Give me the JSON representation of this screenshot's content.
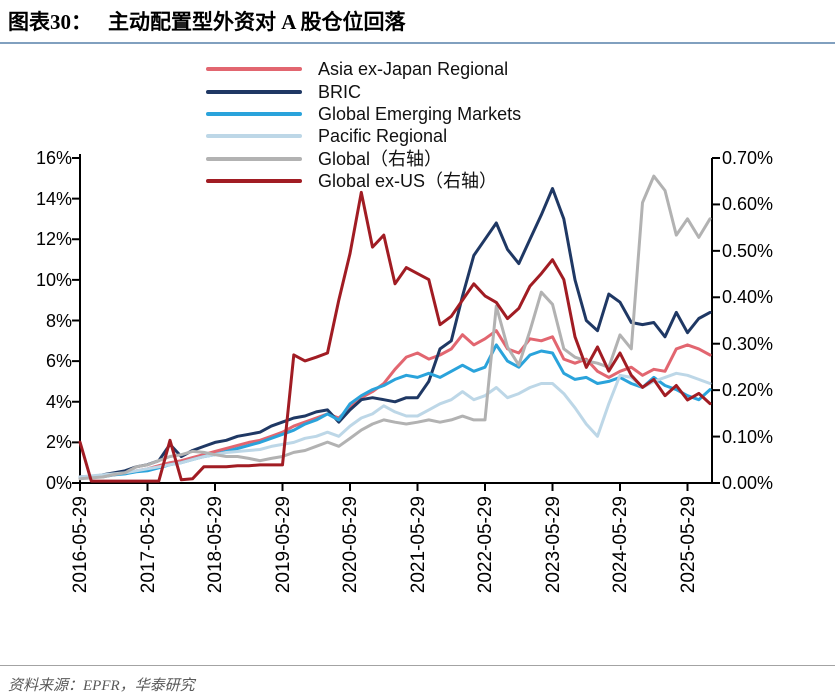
{
  "figure": {
    "label": "图表30：",
    "title": "主动配置型外资对 A 股仓位回落",
    "source": "资料来源：EPFR，华泰研究",
    "accent_rule_color": "#81a0bf",
    "axis_color": "#000000"
  },
  "chart_data": {
    "type": "line",
    "grid": false,
    "legend_position": "top-center",
    "x_tick_labels": [
      "2016-05-29",
      "2017-05-29",
      "2018-05-29",
      "2019-05-29",
      "2020-05-29",
      "2021-05-29",
      "2022-05-29",
      "2023-05-29",
      "2024-05-29",
      "2025-05-29"
    ],
    "left_axis": {
      "min": 0,
      "max": 16,
      "step": 2,
      "ticks": [
        "0%",
        "2%",
        "4%",
        "6%",
        "8%",
        "10%",
        "12%",
        "14%",
        "16%"
      ]
    },
    "right_axis": {
      "min": 0,
      "max": 0.7,
      "step": 0.1,
      "ticks": [
        "0.00%",
        "0.10%",
        "0.20%",
        "0.30%",
        "0.40%",
        "0.50%",
        "0.60%",
        "0.70%"
      ]
    },
    "x": [
      "2016-05",
      "2016-07",
      "2016-09",
      "2016-11",
      "2017-01",
      "2017-03",
      "2017-05",
      "2017-07",
      "2017-09",
      "2017-11",
      "2018-01",
      "2018-03",
      "2018-05",
      "2018-07",
      "2018-09",
      "2018-11",
      "2019-01",
      "2019-03",
      "2019-05",
      "2019-07",
      "2019-09",
      "2019-11",
      "2020-01",
      "2020-03",
      "2020-05",
      "2020-07",
      "2020-09",
      "2020-11",
      "2021-01",
      "2021-03",
      "2021-05",
      "2021-07",
      "2021-09",
      "2021-11",
      "2022-01",
      "2022-03",
      "2022-05",
      "2022-07",
      "2022-09",
      "2022-11",
      "2023-01",
      "2023-03",
      "2023-05",
      "2023-07",
      "2023-09",
      "2023-11",
      "2024-01",
      "2024-03",
      "2024-05",
      "2024-07",
      "2024-09",
      "2024-11",
      "2025-01",
      "2025-03",
      "2025-05",
      "2025-07",
      "2025-09"
    ],
    "series": [
      {
        "id": "asia-ex-japan",
        "name": "Asia ex-Japan Regional",
        "color": "#e26670",
        "axis": "left",
        "values": [
          0.3,
          0.3,
          0.35,
          0.4,
          0.5,
          0.6,
          0.7,
          0.85,
          1.0,
          1.1,
          1.25,
          1.4,
          1.55,
          1.7,
          1.85,
          2.0,
          2.1,
          2.3,
          2.5,
          2.8,
          3.0,
          3.2,
          3.4,
          3.2,
          3.7,
          4.2,
          4.5,
          4.9,
          5.6,
          6.2,
          6.4,
          6.1,
          6.3,
          6.6,
          7.3,
          6.8,
          7.1,
          7.5,
          6.6,
          6.4,
          7.1,
          7.0,
          7.2,
          6.1,
          5.9,
          6.1,
          5.5,
          5.2,
          5.5,
          5.7,
          5.3,
          5.6,
          5.5,
          6.6,
          6.8,
          6.6,
          6.3
        ]
      },
      {
        "id": "bric",
        "name": "BRIC",
        "color": "#1f3864",
        "axis": "left",
        "values": [
          0.3,
          0.3,
          0.4,
          0.5,
          0.6,
          0.8,
          0.9,
          1.1,
          1.9,
          1.3,
          1.6,
          1.8,
          2.0,
          2.1,
          2.3,
          2.4,
          2.5,
          2.8,
          3.0,
          3.2,
          3.3,
          3.5,
          3.6,
          3.0,
          3.6,
          4.1,
          4.2,
          4.1,
          4.0,
          4.2,
          4.2,
          5.0,
          6.6,
          7.0,
          9.2,
          11.2,
          12.0,
          12.8,
          11.5,
          10.8,
          12.0,
          13.2,
          14.5,
          13.0,
          10.0,
          8.0,
          7.5,
          9.3,
          8.9,
          7.9,
          7.8,
          7.9,
          7.2,
          8.4,
          7.4,
          8.1,
          8.4
        ]
      },
      {
        "id": "gem",
        "name": "Global Emerging Markets",
        "color": "#2aa3db",
        "axis": "left",
        "values": [
          0.25,
          0.3,
          0.3,
          0.4,
          0.45,
          0.55,
          0.6,
          0.75,
          0.9,
          1.0,
          1.15,
          1.3,
          1.4,
          1.55,
          1.7,
          1.85,
          2.0,
          2.2,
          2.4,
          2.6,
          2.9,
          3.1,
          3.4,
          3.1,
          3.9,
          4.3,
          4.6,
          4.8,
          5.1,
          5.3,
          5.2,
          5.4,
          5.2,
          5.5,
          5.8,
          5.5,
          5.7,
          6.8,
          6.0,
          5.7,
          6.3,
          6.5,
          6.4,
          5.4,
          5.1,
          5.2,
          4.9,
          5.0,
          5.2,
          4.9,
          4.7,
          5.2,
          4.8,
          4.6,
          4.3,
          4.1,
          4.6
        ]
      },
      {
        "id": "pacific",
        "name": "Pacific Regional",
        "color": "#bdd7e7",
        "axis": "left",
        "values": [
          0.3,
          0.35,
          0.4,
          0.45,
          0.5,
          0.6,
          0.7,
          0.8,
          0.9,
          1.0,
          1.15,
          1.3,
          1.4,
          1.5,
          1.55,
          1.6,
          1.65,
          1.8,
          1.9,
          2.0,
          2.2,
          2.3,
          2.5,
          2.3,
          2.8,
          3.2,
          3.4,
          3.8,
          3.5,
          3.3,
          3.3,
          3.6,
          3.9,
          4.1,
          4.5,
          4.1,
          4.3,
          4.7,
          4.2,
          4.4,
          4.7,
          4.9,
          4.9,
          4.4,
          3.7,
          2.9,
          2.3,
          3.9,
          5.3,
          5.2,
          4.7,
          5.0,
          5.2,
          5.4,
          5.3,
          5.1,
          4.9
        ]
      },
      {
        "id": "global",
        "name": "Global（右轴）",
        "color": "#b2b2b2",
        "axis": "right",
        "values": [
          0.009,
          0.011,
          0.013,
          0.018,
          0.022,
          0.035,
          0.039,
          0.048,
          0.057,
          0.061,
          0.068,
          0.066,
          0.061,
          0.057,
          0.057,
          0.053,
          0.048,
          0.053,
          0.057,
          0.066,
          0.07,
          0.079,
          0.088,
          0.079,
          0.096,
          0.114,
          0.127,
          0.136,
          0.131,
          0.127,
          0.131,
          0.136,
          0.131,
          0.136,
          0.144,
          0.136,
          0.136,
          0.381,
          0.293,
          0.254,
          0.328,
          0.411,
          0.385,
          0.289,
          0.271,
          0.263,
          0.258,
          0.249,
          0.319,
          0.289,
          0.604,
          0.661,
          0.63,
          0.534,
          0.569,
          0.529,
          0.569
        ]
      },
      {
        "id": "global-ex-us",
        "name": "Global ex-US（右轴）",
        "color": "#a11c23",
        "axis": "right",
        "values": [
          0.088,
          0.004,
          0.004,
          0.004,
          0.004,
          0.004,
          0.004,
          0.004,
          0.092,
          0.007,
          0.009,
          0.035,
          0.035,
          0.035,
          0.037,
          0.037,
          0.039,
          0.039,
          0.039,
          0.276,
          0.263,
          0.271,
          0.28,
          0.394,
          0.494,
          0.626,
          0.508,
          0.534,
          0.429,
          0.464,
          0.451,
          0.438,
          0.341,
          0.359,
          0.394,
          0.429,
          0.403,
          0.389,
          0.354,
          0.376,
          0.424,
          0.451,
          0.481,
          0.438,
          0.315,
          0.249,
          0.293,
          0.241,
          0.28,
          0.232,
          0.206,
          0.223,
          0.188,
          0.21,
          0.179,
          0.193,
          0.171
        ]
      }
    ]
  }
}
